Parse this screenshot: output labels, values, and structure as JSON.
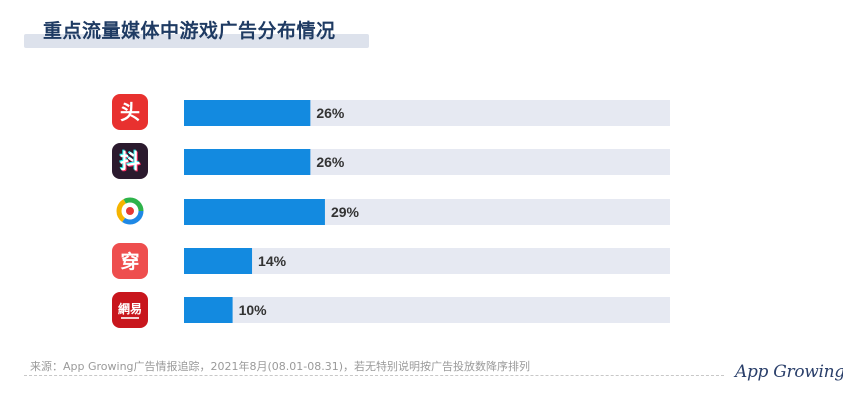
{
  "title": "重点流量媒体中游戏广告分布情况",
  "chart_data": {
    "type": "bar",
    "orientation": "horizontal",
    "categories": [
      "头",
      "抖",
      "",
      "穿",
      "網易"
    ],
    "values": [
      26,
      26,
      29,
      14,
      10
    ],
    "value_labels": [
      "26%",
      "26%",
      "29%",
      "14%",
      "10%"
    ],
    "xlim": [
      0,
      100
    ],
    "title": "重点流量媒体中游戏广告分布情况",
    "xlabel": "",
    "ylabel": "",
    "grid": false,
    "legend": "none",
    "icons": [
      "toutiao-icon",
      "douyin-icon",
      "tencent-news-icon",
      "chuanshanjia-icon",
      "netease-news-icon"
    ],
    "colors": {
      "bar": "#138ae0",
      "track": "#e6e9f2",
      "label": "#333333"
    }
  },
  "footer": {
    "source": "来源：App Growing广告情报追踪，2021年8月(08.01-08.31)，若无特别说明按广告投放数降序排列",
    "brand": "App Growing"
  },
  "colors": {
    "toutiao": "#e8312f",
    "douyin": "#2b1a2e",
    "netease": "#c8161d",
    "chuanshanjia": "#ee4e4e",
    "title": "#1f3b63"
  }
}
